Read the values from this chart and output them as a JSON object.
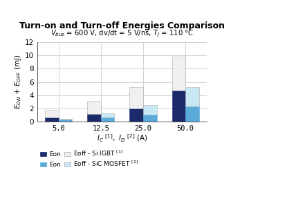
{
  "title": "Turn-on and Turn-off Energies Comparison",
  "subtitle_raw": "V_bus = 600 V, dv/dt = 5 V/ns, T_J = 110 °C",
  "xlabel_raw": "I_C  , I_D  (A)",
  "ylabel_raw": "E_ON + E_OFF (mJ)",
  "categories": [
    "5.0",
    "12.5",
    "25.0",
    "50.0"
  ],
  "igbt_eon": [
    0.65,
    1.15,
    2.05,
    4.7
  ],
  "igbt_eoff": [
    1.1,
    2.0,
    3.15,
    5.1
  ],
  "sic_eon": [
    0.3,
    0.65,
    1.05,
    2.35
  ],
  "sic_eoff": [
    0.2,
    0.65,
    1.5,
    2.9
  ],
  "color_igbt_eon": "#1b2a6b",
  "color_igbt_eoff": "#f0f0f0",
  "color_sic_eon": "#5aabda",
  "color_sic_eoff": "#c8e8f5",
  "edge_igbt_eon": "#1b2a6b",
  "edge_igbt_eoff": "#aaaaaa",
  "edge_sic_eon": "#5aabda",
  "edge_sic_eoff": "#aaaaaa",
  "ylim": [
    0,
    12
  ],
  "yticks": [
    0,
    2,
    4,
    6,
    8,
    10,
    12
  ],
  "bar_width": 0.32,
  "grid_color": "#cccccc",
  "legend1_row": "Eon  ■Eoff - Si IGBT [1]",
  "legend2_row": "Eon  ■Eoff - SiC MOSFET [2]"
}
